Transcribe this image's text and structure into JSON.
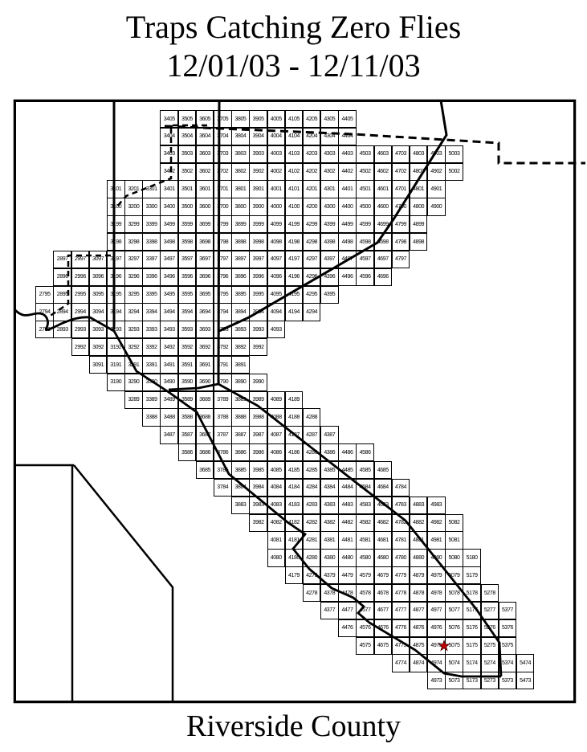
{
  "title": {
    "line1": "Traps Catching Zero Flies",
    "line2": "12/01/03 - 12/11/03"
  },
  "footer": {
    "label": "Riverside County"
  },
  "colors": {
    "line": "#000000",
    "background": "#ffffff",
    "star_fill": "#cc0000",
    "star_outline": "#550000"
  },
  "map": {
    "description_visible_marks": [
      "grid-of-trap-cells",
      "roads-solid",
      "boundary-dashed",
      "star-marker"
    ],
    "star": {
      "cell": "5075",
      "symbol": "star"
    },
    "grid_rows": [
      {
        "row": "05",
        "labels": [
          "3405",
          "3505",
          "3605",
          "3705",
          "3805",
          "3905",
          "4005",
          "4105",
          "4205",
          "4305",
          "4405"
        ]
      },
      {
        "row": "04",
        "labels": [
          "3404",
          "3504",
          "3604",
          "3704",
          "3804",
          "3904",
          "4004",
          "4104",
          "4204",
          "4304",
          "4404"
        ]
      },
      {
        "row": "03",
        "labels": [
          "3403",
          "3503",
          "3603",
          "3703",
          "3803",
          "3903",
          "4003",
          "4103",
          "4203",
          "4303",
          "4403",
          "4503",
          "4603",
          "4703",
          "4803",
          "4903",
          "5003"
        ]
      },
      {
        "row": "02",
        "labels": [
          "3402",
          "3502",
          "3602",
          "3702",
          "3802",
          "3902",
          "4002",
          "4102",
          "4202",
          "4302",
          "4402",
          "4502",
          "4602",
          "4702",
          "4802",
          "4902",
          "5002"
        ]
      },
      {
        "row": "01",
        "labels": [
          "3101",
          "3201",
          "3301",
          "3401",
          "3501",
          "3601",
          "3701",
          "3801",
          "3901",
          "4001",
          "4101",
          "4201",
          "4301",
          "4401",
          "4501",
          "4601",
          "4701",
          "4801",
          "4901"
        ]
      },
      {
        "row": "00",
        "labels": [
          "3100",
          "3200",
          "3300",
          "3400",
          "3500",
          "3600",
          "3700",
          "3800",
          "3900",
          "4000",
          "4100",
          "4200",
          "4300",
          "4400",
          "4500",
          "4600",
          "4700",
          "4800",
          "4900"
        ]
      },
      {
        "row": "99",
        "labels": [
          "3199",
          "3299",
          "3399",
          "3499",
          "3599",
          "3699",
          "3799",
          "3899",
          "3999",
          "4099",
          "4199",
          "4299",
          "4399",
          "4499",
          "4599",
          "4699",
          "4799",
          "4899"
        ]
      },
      {
        "row": "98",
        "labels": [
          "3198",
          "3298",
          "3398",
          "3498",
          "3598",
          "3698",
          "3798",
          "3898",
          "3998",
          "4098",
          "4198",
          "4298",
          "4398",
          "4498",
          "4598",
          "4698",
          "4798",
          "4898"
        ]
      },
      {
        "row": "97",
        "labels": [
          "2897",
          "2997",
          "3097",
          "3197",
          "3297",
          "3397",
          "3497",
          "3597",
          "3697",
          "3797",
          "3897",
          "3997",
          "4097",
          "4197",
          "4297",
          "4397",
          "4497",
          "4597",
          "4697",
          "4797"
        ]
      },
      {
        "row": "96",
        "labels": [
          "2896",
          "2996",
          "3096",
          "3196",
          "3296",
          "3396",
          "3496",
          "3596",
          "3696",
          "3796",
          "3896",
          "3996",
          "4096",
          "4196",
          "4296",
          "4396",
          "4496",
          "4596",
          "4696"
        ]
      },
      {
        "row": "95",
        "labels": [
          "2795",
          "2895",
          "2995",
          "3095",
          "3195",
          "3295",
          "3395",
          "3495",
          "3595",
          "3695",
          "3795",
          "3895",
          "3995",
          "4095",
          "4195",
          "4295",
          "4395"
        ]
      },
      {
        "row": "94",
        "labels": [
          "2794",
          "2894",
          "2994",
          "3094",
          "3194",
          "3294",
          "3394",
          "3494",
          "3594",
          "3694",
          "3794",
          "3894",
          "3994",
          "4094",
          "4194",
          "4294"
        ]
      },
      {
        "row": "93",
        "labels": [
          "2793",
          "2893",
          "2993",
          "3093",
          "3193",
          "3293",
          "3393",
          "3493",
          "3593",
          "3693",
          "3793",
          "3893",
          "3993",
          "4093"
        ]
      },
      {
        "row": "92",
        "labels": [
          "2992",
          "3092",
          "3192",
          "3292",
          "3392",
          "3492",
          "3592",
          "3692",
          "3792",
          "3892",
          "3992"
        ]
      },
      {
        "row": "91",
        "labels": [
          "3091",
          "3191",
          "3291",
          "3391",
          "3491",
          "3591",
          "3691",
          "3791",
          "3891"
        ]
      },
      {
        "row": "90",
        "labels": [
          "3190",
          "3290",
          "3390",
          "3490",
          "3590",
          "3690",
          "3790",
          "3890",
          "3990"
        ]
      },
      {
        "row": "89",
        "labels": [
          "3289",
          "3389",
          "3489",
          "3589",
          "3689",
          "3789",
          "3889",
          "3989",
          "4089",
          "4189"
        ]
      },
      {
        "row": "88",
        "labels": [
          "3388",
          "3488",
          "3588",
          "3688",
          "3788",
          "3888",
          "3988",
          "4088",
          "4188",
          "4288"
        ]
      },
      {
        "row": "87",
        "labels": [
          "3487",
          "3587",
          "3687",
          "3787",
          "3887",
          "3987",
          "4087",
          "4187",
          "4287",
          "4387"
        ]
      },
      {
        "row": "86",
        "labels": [
          "3586",
          "3686",
          "3786",
          "3886",
          "3986",
          "4086",
          "4186",
          "4286",
          "4386",
          "4486",
          "4586"
        ]
      },
      {
        "row": "85",
        "labels": [
          "3685",
          "3785",
          "3885",
          "3985",
          "4085",
          "4185",
          "4285",
          "4385",
          "4485",
          "4585",
          "4685"
        ]
      },
      {
        "row": "84",
        "labels": [
          "3784",
          "3884",
          "3984",
          "4084",
          "4184",
          "4284",
          "4384",
          "4484",
          "4584",
          "4684",
          "4784"
        ]
      },
      {
        "row": "83",
        "labels": [
          "3883",
          "3983",
          "4083",
          "4183",
          "4283",
          "4383",
          "4483",
          "4583",
          "4683",
          "4783",
          "4883",
          "4983"
        ]
      },
      {
        "row": "82",
        "labels": [
          "3982",
          "4082",
          "4182",
          "4282",
          "4382",
          "4482",
          "4582",
          "4682",
          "4782",
          "4882",
          "4982",
          "5082"
        ]
      },
      {
        "row": "81",
        "labels": [
          "4081",
          "4181",
          "4281",
          "4381",
          "4481",
          "4581",
          "4681",
          "4781",
          "4881",
          "4981",
          "5081"
        ]
      },
      {
        "row": "80",
        "labels": [
          "4080",
          "4180",
          "4280",
          "4380",
          "4480",
          "4580",
          "4680",
          "4780",
          "4880",
          "4980",
          "5080",
          "5180"
        ]
      },
      {
        "row": "79",
        "labels": [
          "4179",
          "4279",
          "4379",
          "4479",
          "4579",
          "4679",
          "4779",
          "4879",
          "4979",
          "5079",
          "5179"
        ]
      },
      {
        "row": "78",
        "labels": [
          "4278",
          "4378",
          "4478",
          "4578",
          "4678",
          "4778",
          "4878",
          "4978",
          "5078",
          "5178",
          "5278"
        ]
      },
      {
        "row": "77",
        "labels": [
          "4377",
          "4477",
          "4577",
          "4677",
          "4777",
          "4877",
          "4977",
          "5077",
          "5177",
          "5277",
          "5377"
        ]
      },
      {
        "row": "76",
        "labels": [
          "4476",
          "4576",
          "4676",
          "4776",
          "4876",
          "4976",
          "5076",
          "5176",
          "5276",
          "5376"
        ]
      },
      {
        "row": "75",
        "labels": [
          "4575",
          "4675",
          "4775",
          "4875",
          "4975",
          "5075",
          "5175",
          "5275",
          "5375"
        ]
      },
      {
        "row": "74",
        "labels": [
          "4774",
          "4874",
          "4974",
          "5074",
          "5174",
          "5274",
          "5374",
          "5474"
        ]
      },
      {
        "row": "73",
        "labels": [
          "4973",
          "5073",
          "5173",
          "5273",
          "5373",
          "5473"
        ]
      }
    ]
  }
}
